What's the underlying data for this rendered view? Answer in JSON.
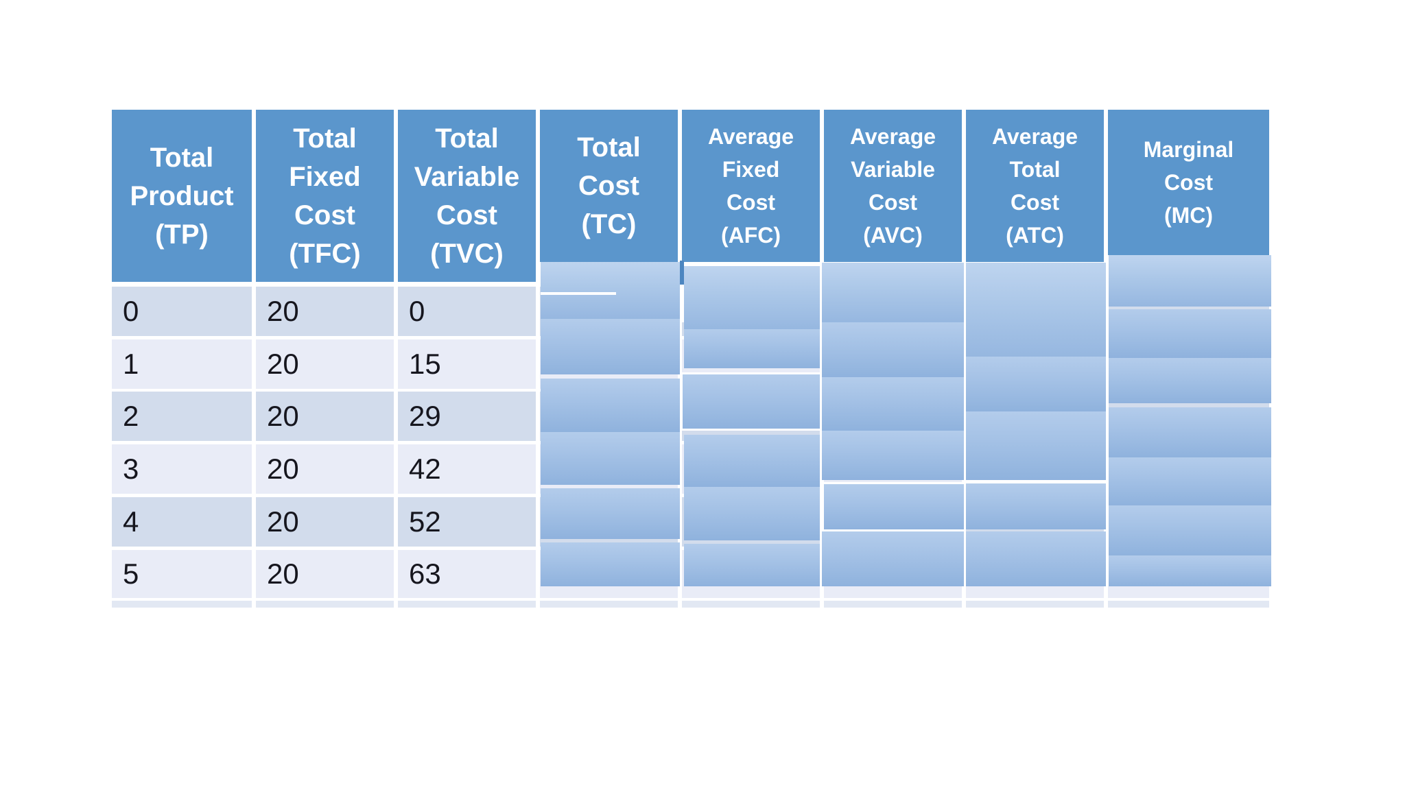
{
  "page": {
    "background": "#ffffff",
    "kind": "slide-table"
  },
  "colors": {
    "header_blue": "#5b96cc",
    "header_text": "#ffffff",
    "row_dark": "#d2dcec",
    "row_light": "#e9ecf7",
    "bottom_strip": "#e2e8f3",
    "cover_top": "#b3cceb",
    "cover_bottom": "#8fb2dd",
    "dark_sliver": "#4c86c0",
    "cell_text": "#16161e",
    "separator": "#ffffff"
  },
  "table": {
    "columns": [
      {
        "id": "tp",
        "header": "Total Product (TP)",
        "header_lines": [
          "Total",
          "Product",
          "(TP)"
        ],
        "size": "big",
        "covered": false
      },
      {
        "id": "tfc",
        "header": "Total Fixed Cost (TFC)",
        "header_lines": [
          "Total",
          "Fixed",
          "Cost",
          "(TFC)"
        ],
        "size": "big",
        "covered": false
      },
      {
        "id": "tvc",
        "header": "Total Variable Cost (TVC)",
        "header_lines": [
          "Total",
          "Variable",
          "Cost",
          "(TVC)"
        ],
        "size": "big",
        "covered": false
      },
      {
        "id": "tc",
        "header": "Total Cost (TC)",
        "header_lines": [
          "Total",
          "Cost",
          "(TC)"
        ],
        "size": "big",
        "covered": true
      },
      {
        "id": "afc",
        "header": "Average Fixed Cost (AFC)",
        "header_lines": [
          "Average",
          "Fixed",
          "Cost",
          "(AFC)"
        ],
        "size": "small",
        "covered": true
      },
      {
        "id": "avc",
        "header": "Average Variable Cost (AVC)",
        "header_lines": [
          "Average",
          "Variable",
          "Cost",
          "(AVC)"
        ],
        "size": "small",
        "covered": true
      },
      {
        "id": "atc",
        "header": "Average Total Cost (ATC)",
        "header_lines": [
          "Average",
          "Total",
          "Cost",
          "(ATC)"
        ],
        "size": "small",
        "covered": true
      },
      {
        "id": "mc",
        "header": "Marginal Cost (MC)",
        "header_lines": [
          "Marginal",
          "Cost",
          "(MC)"
        ],
        "size": "small",
        "covered": true
      }
    ],
    "rows": [
      {
        "tp": "0",
        "tfc": "20",
        "tvc": "0"
      },
      {
        "tp": "1",
        "tfc": "20",
        "tvc": "15"
      },
      {
        "tp": "2",
        "tfc": "20",
        "tvc": "29"
      },
      {
        "tp": "3",
        "tfc": "20",
        "tvc": "42"
      },
      {
        "tp": "4",
        "tfc": "20",
        "tvc": "52"
      },
      {
        "tp": "5",
        "tfc": "20",
        "tvc": "63"
      }
    ],
    "covered_note": "Values in TC, AFC, AVC, ATC and MC columns are hidden behind blue gradient boxes"
  }
}
